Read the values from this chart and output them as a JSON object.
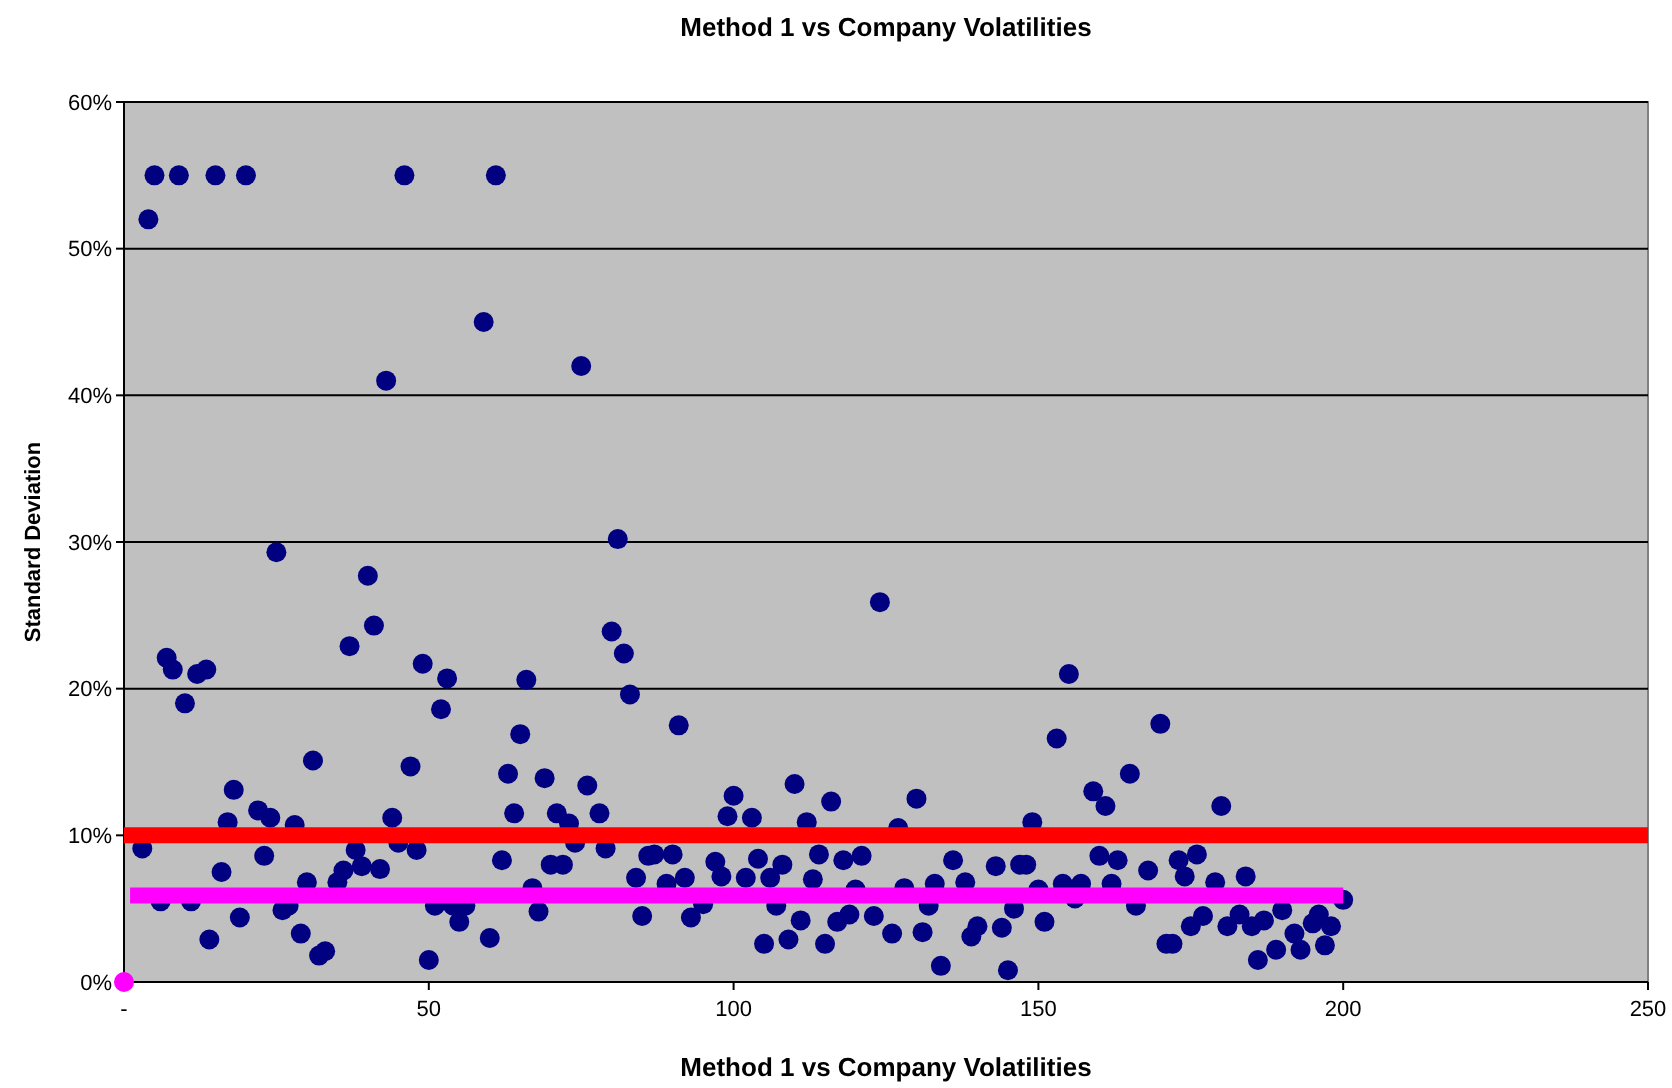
{
  "chart_data": {
    "type": "scatter",
    "title": "Method 1 vs Company Volatilities",
    "xlabel": "Method 1 vs Company Volatilities",
    "ylabel": "Standard Deviation",
    "xlim": [
      0,
      250
    ],
    "xticks": [
      {
        "value": 0,
        "label": "-"
      },
      50,
      100,
      150,
      200,
      250
    ],
    "ylim": [
      0,
      60
    ],
    "yticks": [
      {
        "value": 0,
        "label": "0%"
      },
      {
        "value": 10,
        "label": "10%"
      },
      {
        "value": 20,
        "label": "20%"
      },
      {
        "value": 30,
        "label": "30%"
      },
      {
        "value": 40,
        "label": "40%"
      },
      {
        "value": 50,
        "label": "50%"
      },
      {
        "value": 60,
        "label": "60%"
      }
    ],
    "grid": "y",
    "ref_lines": [
      {
        "axis": "y",
        "value": 10,
        "color": "#ff0000"
      }
    ],
    "series": [
      {
        "color": "#000080",
        "marker": "circle",
        "x": [
          5,
          9,
          15,
          20,
          46,
          61,
          4,
          59,
          43,
          75,
          25,
          40,
          81,
          41,
          37,
          7,
          8,
          12,
          13.5,
          10,
          49,
          53,
          52,
          66,
          80,
          82,
          83,
          65,
          31,
          47,
          63,
          69,
          76,
          18,
          17,
          22,
          24,
          28,
          44,
          64,
          71,
          73,
          78,
          3,
          38,
          45,
          48,
          74,
          79,
          23,
          16,
          39,
          42,
          36,
          35,
          30,
          62,
          70,
          72,
          86,
          84,
          6,
          11,
          19,
          26,
          27,
          29,
          14,
          32,
          33,
          51,
          55,
          60,
          50,
          67,
          68,
          85,
          54,
          56,
          124,
          155,
          91,
          153,
          170,
          165,
          100,
          110,
          116,
          130,
          159,
          161,
          99,
          103,
          112,
          127,
          149,
          87,
          90,
          97,
          104,
          108,
          114,
          118,
          121,
          136,
          143,
          147,
          148,
          160,
          163,
          168,
          89,
          92,
          98,
          102,
          106,
          113,
          133,
          138,
          154,
          157,
          162,
          95,
          107,
          120,
          128,
          132,
          150,
          156,
          166,
          93,
          111,
          117,
          119,
          123,
          126,
          131,
          139,
          140,
          144,
          146,
          151,
          105,
          109,
          115,
          134,
          145,
          171,
          180,
          176,
          173,
          174,
          179,
          184,
          172,
          175,
          177,
          181,
          183,
          185,
          187,
          190,
          192,
          195,
          196,
          198,
          200,
          186,
          189,
          193,
          197
        ],
        "values": [
          55,
          55,
          55,
          55,
          55,
          55,
          52,
          45,
          41,
          42,
          29.3,
          27.7,
          30.2,
          24.3,
          22.9,
          22.1,
          21.3,
          21,
          21.3,
          19,
          21.7,
          20.7,
          18.6,
          20.6,
          23.9,
          22.4,
          19.6,
          16.9,
          15.1,
          14.7,
          14.2,
          13.9,
          13.4,
          13.1,
          10.9,
          11.7,
          11.2,
          10.7,
          11.2,
          11.5,
          11.5,
          10.8,
          11.5,
          9.1,
          9,
          9.5,
          9,
          9.5,
          9.1,
          8.6,
          7.5,
          7.9,
          7.7,
          7.6,
          6.8,
          6.8,
          8.3,
          8,
          8,
          8.6,
          7.1,
          5.5,
          5.5,
          4.4,
          4.9,
          5.2,
          3.3,
          2.9,
          1.8,
          2.1,
          5.2,
          4.1,
          3,
          1.5,
          6.4,
          4.8,
          4.5,
          5.2,
          5.2,
          25.9,
          21,
          17.5,
          16.6,
          17.6,
          14.2,
          12.7,
          13.5,
          12.3,
          12.5,
          13,
          12,
          11.3,
          11.2,
          10.9,
          10.5,
          10.9,
          8.7,
          8.7,
          8.2,
          8.4,
          8,
          8.7,
          8.3,
          8.6,
          8.3,
          7.9,
          8,
          8,
          8.6,
          8.3,
          7.6,
          6.7,
          7.1,
          7.2,
          7.1,
          7.1,
          7,
          6.7,
          6.8,
          6.7,
          6.7,
          6.7,
          5.3,
          5.2,
          6.3,
          6.4,
          5.2,
          6.3,
          5.7,
          5.2,
          4.4,
          4.2,
          4.1,
          4.6,
          4.5,
          3.3,
          3.4,
          3.1,
          3.8,
          3.7,
          5,
          4.1,
          2.6,
          2.9,
          2.6,
          1.1,
          0.8,
          2.6,
          12,
          8.7,
          8.3,
          7.2,
          6.8,
          7.2,
          2.6,
          3.8,
          4.5,
          3.8,
          4.6,
          3.8,
          4.2,
          4.9,
          3.3,
          4,
          4.6,
          3.8,
          5.6,
          1.5,
          2.2,
          2.2,
          2.5
        ]
      },
      {
        "type": "line",
        "color": "#ff00ff",
        "marker": "none",
        "x": [
          1,
          200
        ],
        "values": [
          5.9,
          5.9
        ]
      },
      {
        "color": "#ff00ff",
        "marker": "circle",
        "x": [
          0
        ],
        "values": [
          0
        ]
      }
    ]
  }
}
